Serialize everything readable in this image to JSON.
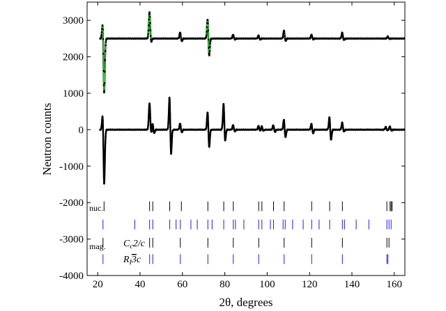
{
  "chart_data": {
    "type": "line",
    "xlabel": "2θ, degrees",
    "ylabel": "Neutron counts",
    "xlim": [
      15,
      165
    ],
    "ylim": [
      -4000,
      3500
    ],
    "xticks": [
      20,
      40,
      60,
      80,
      100,
      120,
      140,
      160
    ],
    "yticks": [
      3000,
      2000,
      1000,
      0,
      -1000,
      -2000,
      -3000,
      -4000
    ],
    "grid": false,
    "colors": {
      "data_points": "#000000",
      "fit_upper": "#33cc33",
      "profile_line": "#000000",
      "tick_black": "#000000",
      "tick_blue": "#1a1aee"
    },
    "series": [
      {
        "baseline": 2500,
        "peaks": [
          {
            "x": 22.5,
            "amp": 700,
            "neg": -1700
          },
          {
            "x": 44.5,
            "amp": 800,
            "neg": -200
          },
          {
            "x": 59.0,
            "amp": 200,
            "neg": -120
          },
          {
            "x": 72.0,
            "amp": 700,
            "neg": -650
          },
          {
            "x": 84.0,
            "amp": 120,
            "neg": -50
          },
          {
            "x": 96.0,
            "amp": 100,
            "neg": -50
          },
          {
            "x": 108.0,
            "amp": 250,
            "neg": -120
          },
          {
            "x": 121.0,
            "amp": 120,
            "neg": -50
          },
          {
            "x": 135.5,
            "amp": 180,
            "neg": -80
          },
          {
            "x": 157.0,
            "amp": 60,
            "neg": -20
          }
        ]
      },
      {
        "baseline": 0,
        "peaks": [
          {
            "x": 22.5,
            "amp": 700,
            "neg": -1700
          },
          {
            "x": 44.5,
            "amp": 800,
            "neg": -200
          },
          {
            "x": 46.0,
            "amp": 200,
            "neg": -150
          },
          {
            "x": 54.0,
            "amp": 1150,
            "neg": -950
          },
          {
            "x": 59.0,
            "amp": 200,
            "neg": -120
          },
          {
            "x": 72.0,
            "amp": 650,
            "neg": -650
          },
          {
            "x": 79.5,
            "amp": 850,
            "neg": -500
          },
          {
            "x": 84.0,
            "amp": 150,
            "neg": -80
          },
          {
            "x": 96.0,
            "amp": 120,
            "neg": -60
          },
          {
            "x": 97.5,
            "amp": 100,
            "neg": -50
          },
          {
            "x": 103.0,
            "amp": 150,
            "neg": -100
          },
          {
            "x": 108.0,
            "amp": 350,
            "neg": -300
          },
          {
            "x": 121.0,
            "amp": 200,
            "neg": -150
          },
          {
            "x": 129.5,
            "amp": 450,
            "neg": -400
          },
          {
            "x": 135.5,
            "amp": 220,
            "neg": -100
          },
          {
            "x": 156.0,
            "amp": 80,
            "neg": -30
          },
          {
            "x": 158.0,
            "amp": 100,
            "neg": -50
          }
        ]
      }
    ],
    "reflection_rows": [
      {
        "center": -2100,
        "color": "black",
        "positions": [
          23,
          44.5,
          46,
          54,
          59.5,
          72,
          79.5,
          84,
          96,
          97.5,
          103,
          108,
          121,
          129.5,
          135.5,
          156.5,
          158,
          158.5,
          159
        ]
      },
      {
        "center": -2600,
        "color": "blue",
        "positions": [
          22.5,
          37.5,
          44.5,
          46,
          54,
          57,
          59,
          64,
          67,
          72,
          74,
          79.5,
          84,
          85,
          89,
          96,
          97.5,
          101.5,
          103,
          107.5,
          108.5,
          112,
          117,
          121,
          124.5,
          129.5,
          135.5,
          136.5,
          142,
          148,
          156.5,
          157.5,
          158.5
        ]
      },
      {
        "center": -3100,
        "color": "black",
        "positions": [
          22.5,
          44.5,
          46,
          59,
          72,
          84,
          96,
          108,
          121,
          135.5,
          156.5,
          157.5
        ]
      },
      {
        "center": -3550,
        "color": "blue",
        "positions": [
          22.5,
          44.5,
          46,
          59,
          72,
          84,
          96,
          108,
          121,
          135.5,
          156.5,
          157
        ]
      }
    ],
    "row_labels": {
      "nuc": "nuc.",
      "mag": "mag."
    }
  }
}
